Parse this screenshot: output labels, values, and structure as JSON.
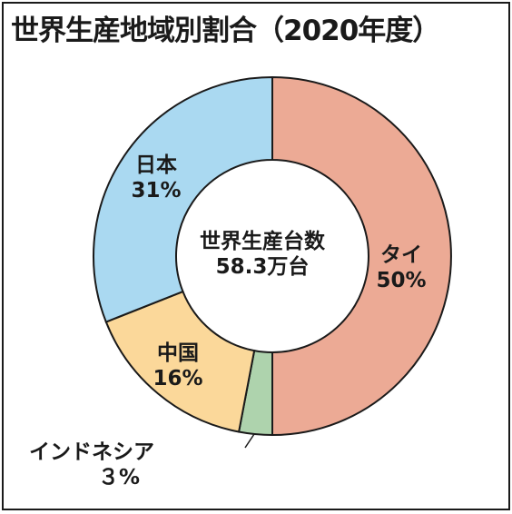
{
  "title": "世界生産地域別割合（2020年度）",
  "center": {
    "line1": "世界生産台数",
    "line2": "58.3万台"
  },
  "chart_data": {
    "type": "pie",
    "title": "世界生産地域別割合（2020年度）",
    "hole_text": [
      "世界生産台数",
      "58.3万台"
    ],
    "total": "58.3万台",
    "slices": [
      {
        "label": "タイ",
        "pct_text": "50%",
        "value": 50,
        "color": "#ecaa95"
      },
      {
        "label": "インドネシア",
        "pct_text": "３%",
        "value": 3,
        "color": "#aed3ad"
      },
      {
        "label": "中国",
        "pct_text": "16%",
        "value": 16,
        "color": "#fbd89a"
      },
      {
        "label": "日本",
        "pct_text": "31%",
        "value": 31,
        "color": "#aad9f1"
      }
    ]
  }
}
